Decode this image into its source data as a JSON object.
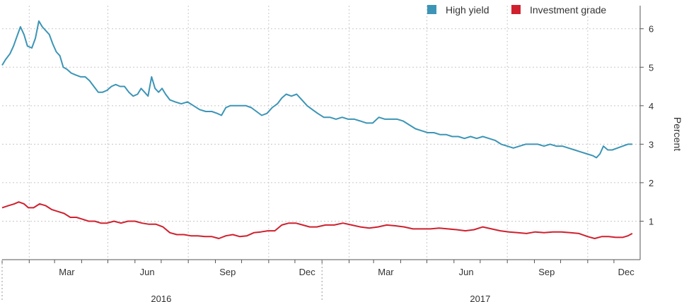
{
  "chart_data": {
    "type": "line",
    "title": "",
    "ylabel": "Percent",
    "ylim": [
      0.0,
      6.6
    ],
    "yticks": [
      1,
      2,
      3,
      4,
      5,
      6
    ],
    "xlim": [
      "2016-01-01",
      "2017-12-31"
    ],
    "x_month_labels": [
      {
        "label": "Mar",
        "date": "2016-03-15"
      },
      {
        "label": "Jun",
        "date": "2016-06-15"
      },
      {
        "label": "Sep",
        "date": "2016-09-15"
      },
      {
        "label": "Dec",
        "date": "2016-12-15"
      },
      {
        "label": "Mar",
        "date": "2017-03-15"
      },
      {
        "label": "Jun",
        "date": "2017-06-15"
      },
      {
        "label": "Sep",
        "date": "2017-09-15"
      },
      {
        "label": "Dec",
        "date": "2017-12-15"
      }
    ],
    "x_year_labels": [
      {
        "label": "2016",
        "date": "2016-07-01"
      },
      {
        "label": "2017",
        "date": "2017-07-01"
      }
    ],
    "legend_position": "top-right",
    "grid": true,
    "series": [
      {
        "name": "High yield",
        "color": "#3c95b6",
        "points": [
          [
            "2016-01-01",
            5.05
          ],
          [
            "2016-01-05",
            5.2
          ],
          [
            "2016-01-10",
            5.35
          ],
          [
            "2016-01-14",
            5.55
          ],
          [
            "2016-01-18",
            5.8
          ],
          [
            "2016-01-22",
            6.05
          ],
          [
            "2016-01-26",
            5.85
          ],
          [
            "2016-01-30",
            5.55
          ],
          [
            "2016-02-04",
            5.5
          ],
          [
            "2016-02-08",
            5.75
          ],
          [
            "2016-02-12",
            6.2
          ],
          [
            "2016-02-16",
            6.05
          ],
          [
            "2016-02-20",
            5.95
          ],
          [
            "2016-02-24",
            5.85
          ],
          [
            "2016-02-28",
            5.6
          ],
          [
            "2016-03-03",
            5.4
          ],
          [
            "2016-03-07",
            5.3
          ],
          [
            "2016-03-11",
            5.0
          ],
          [
            "2016-03-15",
            4.95
          ],
          [
            "2016-03-20",
            4.85
          ],
          [
            "2016-03-25",
            4.8
          ],
          [
            "2016-03-31",
            4.75
          ],
          [
            "2016-04-05",
            4.75
          ],
          [
            "2016-04-10",
            4.65
          ],
          [
            "2016-04-15",
            4.5
          ],
          [
            "2016-04-20",
            4.35
          ],
          [
            "2016-04-25",
            4.35
          ],
          [
            "2016-04-30",
            4.4
          ],
          [
            "2016-05-05",
            4.5
          ],
          [
            "2016-05-10",
            4.55
          ],
          [
            "2016-05-15",
            4.5
          ],
          [
            "2016-05-20",
            4.5
          ],
          [
            "2016-05-25",
            4.35
          ],
          [
            "2016-05-30",
            4.25
          ],
          [
            "2016-06-04",
            4.3
          ],
          [
            "2016-06-08",
            4.45
          ],
          [
            "2016-06-12",
            4.35
          ],
          [
            "2016-06-16",
            4.25
          ],
          [
            "2016-06-20",
            4.75
          ],
          [
            "2016-06-24",
            4.45
          ],
          [
            "2016-06-28",
            4.35
          ],
          [
            "2016-07-02",
            4.45
          ],
          [
            "2016-07-06",
            4.3
          ],
          [
            "2016-07-11",
            4.15
          ],
          [
            "2016-07-17",
            4.1
          ],
          [
            "2016-07-24",
            4.05
          ],
          [
            "2016-07-31",
            4.1
          ],
          [
            "2016-08-07",
            4.0
          ],
          [
            "2016-08-14",
            3.9
          ],
          [
            "2016-08-21",
            3.85
          ],
          [
            "2016-08-28",
            3.85
          ],
          [
            "2016-09-03",
            3.8
          ],
          [
            "2016-09-08",
            3.75
          ],
          [
            "2016-09-13",
            3.95
          ],
          [
            "2016-09-18",
            4.0
          ],
          [
            "2016-09-24",
            4.0
          ],
          [
            "2016-09-30",
            4.0
          ],
          [
            "2016-10-06",
            4.0
          ],
          [
            "2016-10-12",
            3.95
          ],
          [
            "2016-10-18",
            3.85
          ],
          [
            "2016-10-24",
            3.75
          ],
          [
            "2016-10-30",
            3.8
          ],
          [
            "2016-11-05",
            3.95
          ],
          [
            "2016-11-11",
            4.05
          ],
          [
            "2016-11-16",
            4.2
          ],
          [
            "2016-11-21",
            4.3
          ],
          [
            "2016-11-27",
            4.25
          ],
          [
            "2016-12-03",
            4.3
          ],
          [
            "2016-12-09",
            4.15
          ],
          [
            "2016-12-15",
            4.0
          ],
          [
            "2016-12-21",
            3.9
          ],
          [
            "2016-12-27",
            3.8
          ],
          [
            "2017-01-03",
            3.7
          ],
          [
            "2017-01-10",
            3.7
          ],
          [
            "2017-01-17",
            3.65
          ],
          [
            "2017-01-24",
            3.7
          ],
          [
            "2017-01-31",
            3.65
          ],
          [
            "2017-02-07",
            3.65
          ],
          [
            "2017-02-14",
            3.6
          ],
          [
            "2017-02-21",
            3.55
          ],
          [
            "2017-02-28",
            3.55
          ],
          [
            "2017-03-07",
            3.7
          ],
          [
            "2017-03-14",
            3.65
          ],
          [
            "2017-03-21",
            3.65
          ],
          [
            "2017-03-28",
            3.65
          ],
          [
            "2017-04-04",
            3.6
          ],
          [
            "2017-04-11",
            3.5
          ],
          [
            "2017-04-18",
            3.4
          ],
          [
            "2017-04-25",
            3.35
          ],
          [
            "2017-05-02",
            3.3
          ],
          [
            "2017-05-09",
            3.3
          ],
          [
            "2017-05-16",
            3.25
          ],
          [
            "2017-05-23",
            3.25
          ],
          [
            "2017-05-30",
            3.2
          ],
          [
            "2017-06-06",
            3.2
          ],
          [
            "2017-06-13",
            3.15
          ],
          [
            "2017-06-20",
            3.2
          ],
          [
            "2017-06-27",
            3.15
          ],
          [
            "2017-07-04",
            3.2
          ],
          [
            "2017-07-11",
            3.15
          ],
          [
            "2017-07-18",
            3.1
          ],
          [
            "2017-07-25",
            3.0
          ],
          [
            "2017-08-01",
            2.95
          ],
          [
            "2017-08-08",
            2.9
          ],
          [
            "2017-08-15",
            2.95
          ],
          [
            "2017-08-22",
            3.0
          ],
          [
            "2017-08-29",
            3.0
          ],
          [
            "2017-09-05",
            3.0
          ],
          [
            "2017-09-12",
            2.95
          ],
          [
            "2017-09-19",
            3.0
          ],
          [
            "2017-09-26",
            2.95
          ],
          [
            "2017-10-03",
            2.95
          ],
          [
            "2017-10-10",
            2.9
          ],
          [
            "2017-10-17",
            2.85
          ],
          [
            "2017-10-24",
            2.8
          ],
          [
            "2017-10-31",
            2.75
          ],
          [
            "2017-11-07",
            2.7
          ],
          [
            "2017-11-11",
            2.65
          ],
          [
            "2017-11-15",
            2.75
          ],
          [
            "2017-11-19",
            2.95
          ],
          [
            "2017-11-24",
            2.85
          ],
          [
            "2017-11-29",
            2.85
          ],
          [
            "2017-12-05",
            2.9
          ],
          [
            "2017-12-11",
            2.95
          ],
          [
            "2017-12-17",
            3.0
          ],
          [
            "2017-12-22",
            3.0
          ]
        ]
      },
      {
        "name": "Investment grade",
        "color": "#d0202e",
        "points": [
          [
            "2016-01-01",
            1.35
          ],
          [
            "2016-01-08",
            1.4
          ],
          [
            "2016-01-15",
            1.45
          ],
          [
            "2016-01-20",
            1.5
          ],
          [
            "2016-01-26",
            1.45
          ],
          [
            "2016-01-31",
            1.35
          ],
          [
            "2016-02-06",
            1.35
          ],
          [
            "2016-02-13",
            1.45
          ],
          [
            "2016-02-20",
            1.4
          ],
          [
            "2016-02-27",
            1.3
          ],
          [
            "2016-03-05",
            1.25
          ],
          [
            "2016-03-12",
            1.2
          ],
          [
            "2016-03-19",
            1.1
          ],
          [
            "2016-03-26",
            1.1
          ],
          [
            "2016-04-02",
            1.05
          ],
          [
            "2016-04-09",
            1.0
          ],
          [
            "2016-04-16",
            1.0
          ],
          [
            "2016-04-23",
            0.95
          ],
          [
            "2016-04-30",
            0.95
          ],
          [
            "2016-05-08",
            1.0
          ],
          [
            "2016-05-16",
            0.95
          ],
          [
            "2016-05-24",
            1.0
          ],
          [
            "2016-06-01",
            1.0
          ],
          [
            "2016-06-09",
            0.95
          ],
          [
            "2016-06-17",
            0.92
          ],
          [
            "2016-06-25",
            0.92
          ],
          [
            "2016-07-03",
            0.85
          ],
          [
            "2016-07-11",
            0.7
          ],
          [
            "2016-07-19",
            0.65
          ],
          [
            "2016-07-27",
            0.65
          ],
          [
            "2016-08-04",
            0.62
          ],
          [
            "2016-08-12",
            0.62
          ],
          [
            "2016-08-20",
            0.6
          ],
          [
            "2016-08-28",
            0.6
          ],
          [
            "2016-09-05",
            0.55
          ],
          [
            "2016-09-13",
            0.62
          ],
          [
            "2016-09-21",
            0.65
          ],
          [
            "2016-09-29",
            0.6
          ],
          [
            "2016-10-07",
            0.62
          ],
          [
            "2016-10-15",
            0.7
          ],
          [
            "2016-10-23",
            0.72
          ],
          [
            "2016-10-31",
            0.75
          ],
          [
            "2016-11-08",
            0.75
          ],
          [
            "2016-11-16",
            0.9
          ],
          [
            "2016-11-24",
            0.95
          ],
          [
            "2016-12-02",
            0.95
          ],
          [
            "2016-12-10",
            0.9
          ],
          [
            "2016-12-18",
            0.85
          ],
          [
            "2016-12-26",
            0.85
          ],
          [
            "2017-01-05",
            0.9
          ],
          [
            "2017-01-15",
            0.9
          ],
          [
            "2017-01-25",
            0.95
          ],
          [
            "2017-02-04",
            0.9
          ],
          [
            "2017-02-14",
            0.85
          ],
          [
            "2017-02-24",
            0.82
          ],
          [
            "2017-03-06",
            0.85
          ],
          [
            "2017-03-16",
            0.9
          ],
          [
            "2017-03-26",
            0.88
          ],
          [
            "2017-04-05",
            0.85
          ],
          [
            "2017-04-15",
            0.8
          ],
          [
            "2017-04-25",
            0.8
          ],
          [
            "2017-05-05",
            0.8
          ],
          [
            "2017-05-15",
            0.82
          ],
          [
            "2017-05-25",
            0.8
          ],
          [
            "2017-06-04",
            0.78
          ],
          [
            "2017-06-14",
            0.75
          ],
          [
            "2017-06-24",
            0.78
          ],
          [
            "2017-07-04",
            0.85
          ],
          [
            "2017-07-14",
            0.8
          ],
          [
            "2017-07-24",
            0.75
          ],
          [
            "2017-08-03",
            0.72
          ],
          [
            "2017-08-13",
            0.7
          ],
          [
            "2017-08-23",
            0.68
          ],
          [
            "2017-09-02",
            0.72
          ],
          [
            "2017-09-12",
            0.7
          ],
          [
            "2017-09-22",
            0.72
          ],
          [
            "2017-10-02",
            0.72
          ],
          [
            "2017-10-12",
            0.7
          ],
          [
            "2017-10-22",
            0.68
          ],
          [
            "2017-11-01",
            0.6
          ],
          [
            "2017-11-09",
            0.55
          ],
          [
            "2017-11-17",
            0.6
          ],
          [
            "2017-11-25",
            0.6
          ],
          [
            "2017-12-03",
            0.58
          ],
          [
            "2017-12-11",
            0.58
          ],
          [
            "2017-12-17",
            0.62
          ],
          [
            "2017-12-22",
            0.68
          ]
        ]
      }
    ]
  }
}
